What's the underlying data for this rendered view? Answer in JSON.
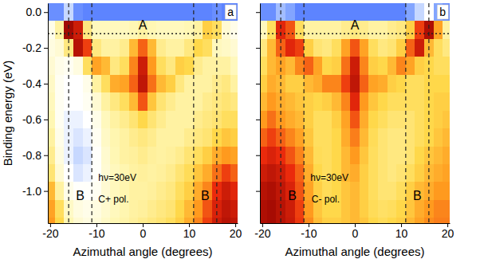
{
  "chart_data": [
    {
      "type": "heatmap",
      "title": "a",
      "x_label": "Azimuthal angle (degrees)",
      "y_label": "Binding energy (eV)",
      "xlim": [
        -20.5,
        20.5
      ],
      "ylim": [
        -1.18,
        0.05
      ],
      "xticks": [
        -20,
        -10,
        0,
        10,
        20
      ],
      "yticks": [
        {
          "value": 0,
          "label": "0.0"
        },
        -0.2,
        -0.4,
        -0.6,
        -0.8,
        {
          "value": -1,
          "label": "-1.0"
        }
      ],
      "tick_labels": true,
      "x_edges": [
        -21,
        -19,
        -17,
        -15,
        -13,
        -11,
        -9,
        -7,
        -5,
        -3,
        -1,
        1,
        3,
        5,
        7,
        9,
        11,
        13,
        15,
        17,
        19,
        21
      ],
      "y_edges": [
        0.05,
        -0.05,
        -0.15,
        -0.25,
        -0.35,
        -0.45,
        -0.55,
        -0.65,
        -0.75,
        -0.85,
        -0.95,
        -1.05,
        -1.15,
        -1.25
      ],
      "zlim": [
        0,
        100
      ],
      "z": [
        [
          6,
          6,
          12,
          6,
          5,
          5,
          5,
          5,
          5,
          5,
          5,
          5,
          5,
          5,
          5,
          5,
          5,
          5,
          6,
          5,
          5
        ],
        [
          20,
          35,
          95,
          85,
          40,
          30,
          30,
          30,
          30,
          32,
          35,
          32,
          30,
          30,
          30,
          32,
          35,
          50,
          45,
          25,
          20
        ],
        [
          22,
          25,
          40,
          90,
          75,
          40,
          35,
          35,
          38,
          55,
          70,
          55,
          38,
          35,
          35,
          40,
          48,
          45,
          30,
          28,
          25
        ],
        [
          25,
          20,
          18,
          22,
          45,
          60,
          55,
          40,
          45,
          65,
          85,
          62,
          45,
          40,
          50,
          48,
          38,
          35,
          35,
          35,
          30
        ],
        [
          28,
          18,
          15,
          15,
          20,
          35,
          45,
          58,
          60,
          70,
          88,
          68,
          55,
          50,
          40,
          35,
          35,
          35,
          38,
          40,
          35
        ],
        [
          30,
          18,
          15,
          15,
          18,
          25,
          35,
          40,
          45,
          55,
          72,
          52,
          42,
          38,
          35,
          35,
          35,
          38,
          40,
          42,
          40
        ],
        [
          32,
          18,
          14,
          14,
          15,
          20,
          30,
          35,
          38,
          42,
          48,
          42,
          38,
          35,
          35,
          35,
          38,
          40,
          42,
          45,
          45
        ],
        [
          35,
          20,
          14,
          13,
          14,
          18,
          28,
          33,
          35,
          38,
          40,
          38,
          35,
          35,
          35,
          38,
          40,
          42,
          48,
          52,
          50
        ],
        [
          38,
          22,
          14,
          12,
          13,
          16,
          26,
          32,
          35,
          36,
          38,
          36,
          35,
          36,
          38,
          42,
          45,
          50,
          58,
          62,
          60
        ],
        [
          42,
          25,
          15,
          13,
          14,
          16,
          25,
          30,
          33,
          35,
          36,
          35,
          36,
          38,
          42,
          46,
          52,
          58,
          68,
          75,
          70
        ],
        [
          55,
          35,
          20,
          16,
          16,
          18,
          25,
          30,
          33,
          35,
          35,
          36,
          38,
          40,
          45,
          50,
          58,
          65,
          78,
          85,
          80
        ],
        [
          60,
          45,
          28,
          22,
          20,
          22,
          26,
          30,
          33,
          35,
          36,
          38,
          40,
          42,
          48,
          55,
          62,
          72,
          82,
          88,
          85
        ],
        [
          62,
          48,
          32,
          25,
          22,
          24,
          28,
          32,
          34,
          36,
          38,
          40,
          42,
          45,
          50,
          58,
          65,
          75,
          85,
          90,
          88
        ]
      ],
      "vlines": [
        -16,
        -11,
        11,
        16
      ],
      "hlines": [
        -0.12
      ],
      "annotations": [
        {
          "text": "A",
          "x": 0,
          "y": -0.08
        },
        {
          "text": "B",
          "x": -13.5,
          "y": -1.03
        },
        {
          "text": "B",
          "x": 13.5,
          "y": -1.03
        },
        {
          "text": "hν=30eV",
          "x": -5.5,
          "y": -0.93
        },
        {
          "text": "C+ pol.",
          "x": -6.3,
          "y": -1.05
        }
      ]
    },
    {
      "type": "heatmap",
      "title": "b",
      "x_label": "Azimuthal angle (degrees)",
      "xlim": [
        -20.5,
        20.5
      ],
      "ylim": [
        -1.18,
        0.05
      ],
      "xticks": [
        -20,
        -10,
        0,
        10,
        20
      ],
      "yticks": [
        0,
        -0.2,
        -0.4,
        -0.6,
        -0.8,
        -1
      ],
      "tick_labels": "x",
      "x_edges": [
        -21,
        -19,
        -17,
        -15,
        -13,
        -11,
        -9,
        -7,
        -5,
        -3,
        -1,
        1,
        3,
        5,
        7,
        9,
        11,
        13,
        15,
        17,
        19,
        21
      ],
      "y_edges": [
        0.05,
        -0.05,
        -0.15,
        -0.25,
        -0.35,
        -0.45,
        -0.55,
        -0.65,
        -0.75,
        -0.85,
        -0.95,
        -1.05,
        -1.15,
        -1.25
      ],
      "zlim": [
        0,
        100
      ],
      "z": [
        [
          6,
          6,
          10,
          8,
          5,
          5,
          5,
          5,
          5,
          5,
          5,
          5,
          5,
          5,
          5,
          5,
          8,
          12,
          15,
          8,
          6
        ],
        [
          30,
          45,
          80,
          72,
          45,
          35,
          35,
          35,
          35,
          38,
          40,
          38,
          35,
          35,
          38,
          40,
          50,
          75,
          92,
          60,
          35
        ],
        [
          40,
          55,
          70,
          80,
          75,
          50,
          42,
          40,
          45,
          60,
          72,
          60,
          45,
          40,
          42,
          50,
          70,
          85,
          55,
          45,
          40
        ],
        [
          45,
          55,
          60,
          55,
          65,
          70,
          60,
          48,
          50,
          68,
          85,
          65,
          50,
          48,
          55,
          65,
          60,
          50,
          48,
          45,
          45
        ],
        [
          50,
          58,
          55,
          50,
          50,
          55,
          58,
          65,
          65,
          75,
          88,
          70,
          60,
          58,
          50,
          48,
          45,
          45,
          48,
          48,
          48
        ],
        [
          55,
          62,
          58,
          55,
          52,
          50,
          48,
          50,
          55,
          65,
          80,
          62,
          52,
          48,
          45,
          45,
          45,
          45,
          48,
          50,
          50
        ],
        [
          62,
          68,
          62,
          58,
          55,
          50,
          45,
          45,
          50,
          60,
          72,
          58,
          48,
          45,
          42,
          42,
          42,
          45,
          48,
          50,
          52
        ],
        [
          70,
          75,
          70,
          65,
          60,
          52,
          45,
          45,
          48,
          58,
          66,
          55,
          46,
          42,
          40,
          40,
          42,
          45,
          48,
          52,
          55
        ],
        [
          78,
          82,
          78,
          72,
          65,
          55,
          46,
          45,
          48,
          55,
          62,
          52,
          45,
          42,
          40,
          40,
          42,
          48,
          52,
          55,
          58
        ],
        [
          85,
          88,
          85,
          78,
          70,
          58,
          48,
          45,
          48,
          55,
          58,
          50,
          45,
          42,
          40,
          42,
          45,
          50,
          55,
          58,
          60
        ],
        [
          90,
          92,
          88,
          82,
          72,
          60,
          50,
          46,
          48,
          52,
          55,
          50,
          45,
          42,
          42,
          45,
          50,
          55,
          58,
          62,
          62
        ],
        [
          92,
          94,
          90,
          85,
          75,
          62,
          52,
          48,
          48,
          52,
          55,
          50,
          46,
          44,
          45,
          48,
          52,
          58,
          62,
          65,
          65
        ],
        [
          92,
          94,
          90,
          86,
          76,
          64,
          54,
          50,
          50,
          52,
          55,
          52,
          48,
          46,
          48,
          50,
          55,
          60,
          64,
          66,
          66
        ]
      ],
      "vlines": [
        -16,
        -11,
        11,
        16
      ],
      "hlines": [
        -0.12
      ],
      "annotations": [
        {
          "text": "A",
          "x": 0,
          "y": -0.08
        },
        {
          "text": "B",
          "x": -13.5,
          "y": -1.03
        },
        {
          "text": "B",
          "x": 13.5,
          "y": -1.03
        },
        {
          "text": "hν=30eV",
          "x": -5.5,
          "y": -0.93
        },
        {
          "text": "C- pol.",
          "x": -6.3,
          "y": -1.05
        }
      ]
    }
  ]
}
